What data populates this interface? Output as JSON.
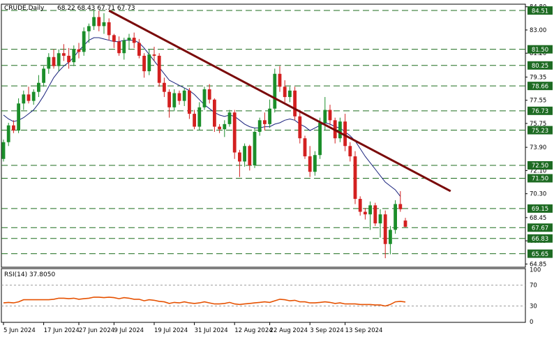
{
  "chart_data": [
    {
      "type": "candlestick",
      "title": "CRUDE,Daily",
      "ohlc_label": "68.22 68.43 67.71 67.73",
      "ylim": [
        64.6,
        85.0
      ],
      "y_ticks": [
        "84.80",
        "83.00",
        "81.20",
        "79.35",
        "77.55",
        "75.75",
        "73.90",
        "72.10",
        "70.30",
        "68.45",
        "66.65",
        "64.85"
      ],
      "x_labels": [
        "5 Jun 2024",
        "17 Jun 2024",
        "27 Jun 2024",
        "9 Jul 2024",
        "19 Jul 2024",
        "31 Jul 2024",
        "12 Aug 2024",
        "22 Aug 2024",
        "3 Sep 2024",
        "13 Sep 2024"
      ],
      "x_label_index": [
        0,
        8,
        15,
        22,
        30,
        38,
        46,
        53,
        61,
        68
      ],
      "levels": [
        {
          "value": 84.51,
          "label": "84.51"
        },
        {
          "value": 81.5,
          "label": "81.50"
        },
        {
          "value": 80.25,
          "label": "80.25"
        },
        {
          "value": 78.66,
          "label": "78.66"
        },
        {
          "value": 76.73,
          "label": "76.73"
        },
        {
          "value": 75.23,
          "label": "75.23"
        },
        {
          "value": 72.5,
          "label": "72.50"
        },
        {
          "value": 71.5,
          "label": "71.50"
        },
        {
          "value": 69.15,
          "label": "69.15"
        },
        {
          "value": 67.67,
          "label": "67.67"
        },
        {
          "value": 66.83,
          "label": "66.83"
        },
        {
          "value": 65.65,
          "label": "65.65"
        }
      ],
      "trendline": {
        "from": {
          "index": 21,
          "value": 84.5
        },
        "to": {
          "index": 89,
          "value": 70.5
        }
      },
      "candles": [
        [
          73.0,
          74.5,
          72.8,
          74.3
        ],
        [
          74.3,
          75.8,
          74.0,
          75.6
        ],
        [
          75.6,
          76.0,
          75.0,
          75.2
        ],
        [
          75.2,
          77.7,
          75.0,
          77.3
        ],
        [
          77.3,
          78.3,
          76.8,
          78.0
        ],
        [
          78.0,
          78.6,
          77.3,
          77.5
        ],
        [
          77.5,
          78.4,
          77.2,
          78.2
        ],
        [
          78.2,
          79.5,
          77.8,
          78.9
        ],
        [
          78.9,
          80.2,
          78.6,
          80.0
        ],
        [
          80.0,
          81.2,
          79.6,
          80.9
        ],
        [
          80.9,
          81.5,
          80.0,
          80.2
        ],
        [
          80.2,
          81.5,
          79.8,
          81.2
        ],
        [
          81.2,
          81.9,
          80.6,
          81.0
        ],
        [
          81.0,
          81.6,
          80.0,
          80.5
        ],
        [
          80.5,
          81.8,
          80.2,
          81.5
        ],
        [
          81.5,
          82.0,
          80.8,
          81.3
        ],
        [
          81.3,
          83.2,
          81.0,
          82.9
        ],
        [
          82.9,
          83.5,
          82.0,
          83.3
        ],
        [
          83.3,
          84.5,
          83.0,
          84.0
        ],
        [
          84.0,
          84.5,
          82.9,
          83.3
        ],
        [
          83.3,
          84.3,
          82.7,
          83.6
        ],
        [
          83.6,
          83.9,
          82.2,
          82.6
        ],
        [
          82.6,
          82.7,
          81.6,
          82.1
        ],
        [
          82.1,
          82.5,
          81.0,
          81.2
        ],
        [
          81.2,
          82.4,
          80.7,
          82.2
        ],
        [
          82.2,
          82.7,
          81.5,
          82.4
        ],
        [
          82.4,
          82.8,
          81.6,
          82.0
        ],
        [
          82.0,
          82.3,
          80.8,
          81.0
        ],
        [
          81.0,
          81.2,
          79.3,
          79.8
        ],
        [
          79.8,
          81.5,
          79.5,
          81.1
        ],
        [
          81.1,
          81.7,
          80.6,
          81.0
        ],
        [
          81.0,
          81.2,
          78.6,
          78.9
        ],
        [
          78.9,
          79.3,
          77.8,
          78.2
        ],
        [
          78.2,
          78.4,
          76.2,
          77.0
        ],
        [
          77.0,
          78.4,
          76.7,
          78.1
        ],
        [
          78.1,
          78.3,
          77.2,
          77.5
        ],
        [
          77.5,
          78.5,
          77.1,
          78.3
        ],
        [
          78.3,
          78.5,
          76.1,
          76.5
        ],
        [
          76.5,
          76.8,
          75.3,
          75.5
        ],
        [
          75.5,
          77.4,
          75.2,
          77.0
        ],
        [
          77.0,
          78.6,
          76.8,
          78.4
        ],
        [
          78.4,
          78.8,
          77.3,
          77.6
        ],
        [
          77.6,
          77.7,
          75.1,
          75.5
        ],
        [
          75.5,
          75.7,
          75.0,
          75.3
        ],
        [
          75.3,
          76.0,
          74.7,
          75.7
        ],
        [
          75.7,
          76.8,
          75.5,
          76.6
        ],
        [
          76.6,
          76.8,
          73.0,
          73.5
        ],
        [
          73.5,
          73.7,
          71.6,
          72.8
        ],
        [
          72.8,
          74.2,
          72.4,
          74.0
        ],
        [
          74.0,
          74.1,
          72.1,
          72.5
        ],
        [
          72.5,
          75.4,
          72.3,
          75.1
        ],
        [
          75.1,
          76.2,
          74.8,
          76.0
        ],
        [
          76.0,
          76.6,
          75.2,
          75.7
        ],
        [
          75.7,
          77.6,
          75.4,
          76.9
        ],
        [
          76.9,
          80.0,
          76.6,
          79.6
        ],
        [
          79.6,
          80.2,
          78.2,
          78.6
        ],
        [
          78.6,
          79.1,
          77.4,
          77.8
        ],
        [
          77.8,
          78.6,
          77.4,
          78.3
        ],
        [
          78.3,
          78.6,
          76.0,
          76.3
        ],
        [
          76.3,
          76.8,
          74.2,
          74.6
        ],
        [
          74.6,
          74.8,
          73.0,
          73.2
        ],
        [
          73.2,
          74.0,
          71.6,
          72.0
        ],
        [
          72.0,
          73.6,
          71.7,
          73.3
        ],
        [
          73.3,
          76.2,
          73.0,
          75.8
        ],
        [
          75.8,
          77.8,
          75.2,
          76.8
        ],
        [
          76.8,
          77.2,
          75.6,
          76.0
        ],
        [
          76.0,
          76.2,
          74.2,
          74.6
        ],
        [
          74.6,
          76.2,
          74.3,
          75.9
        ],
        [
          75.9,
          76.5,
          73.6,
          74.0
        ],
        [
          74.0,
          74.3,
          72.8,
          73.2
        ],
        [
          73.2,
          73.6,
          69.5,
          69.9
        ],
        [
          69.9,
          70.1,
          68.6,
          68.9
        ],
        [
          68.9,
          69.2,
          68.3,
          68.7
        ],
        [
          68.7,
          69.7,
          67.5,
          69.4
        ],
        [
          69.4,
          69.6,
          67.8,
          68.0
        ],
        [
          68.0,
          69.1,
          66.9,
          68.7
        ],
        [
          68.7,
          69.0,
          65.3,
          66.4
        ],
        [
          66.4,
          67.8,
          65.6,
          67.5
        ],
        [
          67.5,
          69.8,
          67.2,
          69.5
        ],
        [
          69.5,
          70.5,
          68.9,
          69.1
        ],
        [
          68.22,
          68.43,
          67.71,
          67.73
        ]
      ],
      "ma": [
        76.4,
        76.1,
        75.9,
        76.0,
        76.2,
        76.5,
        76.8,
        77.3,
        77.9,
        78.6,
        79.3,
        79.8,
        80.2,
        80.5,
        80.9,
        81.4,
        81.8,
        82.2,
        82.4,
        82.4,
        82.3,
        82.2,
        82.1,
        82.1,
        82.2,
        82.2,
        82.2,
        82.0,
        81.6,
        81.1,
        80.6,
        80.1,
        79.6,
        79.1,
        78.9,
        78.7,
        78.5,
        78.3,
        78.0,
        77.6,
        77.2,
        76.9,
        76.6,
        76.4,
        76.3,
        76.4,
        76.3,
        76.0,
        75.7,
        75.5,
        75.4,
        75.4,
        75.5,
        75.5,
        75.7,
        75.8,
        76.0,
        76.1,
        76.0,
        75.7,
        75.5,
        75.2,
        75.4,
        75.6,
        75.8,
        75.7,
        75.5,
        75.4,
        75.1,
        74.8,
        74.4,
        73.8,
        73.2,
        72.7,
        72.2,
        71.7,
        71.2,
        70.9,
        70.6,
        70.1
      ],
      "price_panel_top": 6,
      "price_panel_bottom": 383
    },
    {
      "type": "line",
      "title": "RSI(14) 37.8050",
      "ylim": [
        0,
        100
      ],
      "y_ticks": [
        "100",
        "70",
        "30",
        "0"
      ],
      "guide_levels": [
        70,
        30
      ],
      "values": [
        36,
        37,
        36,
        38,
        42,
        42,
        42,
        42,
        42,
        42,
        43,
        45,
        45,
        44,
        45,
        43,
        44,
        45,
        47,
        47,
        46,
        47,
        46,
        44,
        46,
        45,
        43,
        43,
        40,
        42,
        41,
        39,
        38,
        35,
        37,
        36,
        38,
        36,
        35,
        36,
        38,
        36,
        34,
        34,
        35,
        37,
        34,
        33,
        34,
        35,
        36,
        37,
        38,
        37,
        40,
        43,
        42,
        40,
        41,
        38,
        38,
        36,
        36,
        37,
        38,
        37,
        35,
        36,
        34,
        34,
        34,
        33,
        33,
        33,
        32,
        32,
        30,
        33,
        38,
        39,
        37.8
      ],
      "series_color": "#e65100"
    }
  ]
}
